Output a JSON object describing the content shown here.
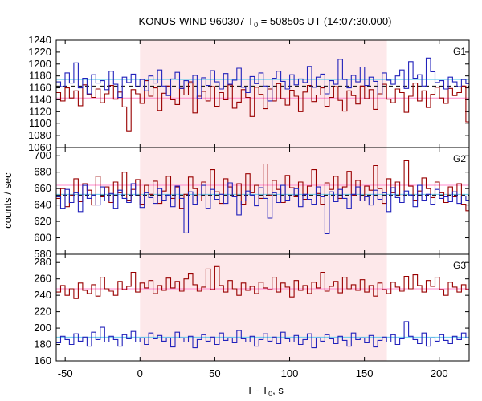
{
  "chart_data": {
    "type": "line",
    "title": {
      "prefix": "KONUS-WIND 960307 T",
      "sub": "0",
      "suffix": " = 50850s UT (14:07:30.000)"
    },
    "xlabel": {
      "prefix": "T - T",
      "sub": "0",
      "suffix": ", s"
    },
    "ylabel": "counts / sec",
    "xlim": [
      -56,
      220
    ],
    "xticks": [
      -50,
      0,
      50,
      100,
      150,
      200
    ],
    "highlight_interval": [
      0,
      165
    ],
    "colors": {
      "highlight": "#fde8ea",
      "red_series": "#990000",
      "blue_series": "#2222bb",
      "red_background": "#ff88cc",
      "blue_background": "#66ccee",
      "dashed_mean": "#000000"
    },
    "bin_width": 2.944,
    "panels": [
      {
        "label": "G1",
        "ylim": [
          1060,
          1240
        ],
        "yticks": [
          1060,
          1080,
          1100,
          1120,
          1140,
          1160,
          1180,
          1200,
          1220,
          1240
        ],
        "red_background_level": 1143,
        "blue_background_level": 1174,
        "dashed_mean_level": 1163,
        "series": [
          {
            "color_key": "red_series",
            "mean": 1143,
            "amplitude": 42,
            "seed": 11,
            "values": [
              1152,
              1138,
              1160,
              1143,
              1155,
              1130,
              1165,
              1149,
              1144,
              1158,
              1135,
              1150,
              1164,
              1141,
              1153,
              1128,
              1088,
              1157,
              1150,
              1134,
              1172,
              1146,
              1160,
              1122,
              1151,
              1163,
              1140,
              1132,
              1159,
              1148,
              1170,
              1118,
              1146,
              1154,
              1138,
              1162,
              1129,
              1152,
              1140,
              1165,
              1126,
              1136,
              1157,
              1144,
              1112,
              1161,
              1149,
              1125,
              1158,
              1138,
              1167,
              1142,
              1131,
              1156,
              1146,
              1120,
              1153,
              1164,
              1137,
              1148,
              1160,
              1129,
              1144,
              1162,
              1139,
              1121,
              1155,
              1147,
              1133,
              1163,
              1142,
              1157,
              1124,
              1150,
              1166,
              1141,
              1135,
              1158,
              1152,
              1119,
              1146,
              1168,
              1138,
              1155,
              1127,
              1149,
              1161,
              1143,
              1134,
              1159,
              1147,
              1152,
              1163,
              1103
            ]
          },
          {
            "color_key": "blue_series",
            "mean": 1170,
            "amplitude": 38,
            "seed": 23,
            "values": [
              1170,
              1162,
              1185,
              1168,
              1202,
              1160,
              1176,
              1150,
              1182,
              1168,
              1172,
              1157,
              1188,
              1166,
              1144,
              1178,
              1169,
              1183,
              1162,
              1174,
              1155,
              1180,
              1168,
              1190,
              1163,
              1147,
              1175,
              1186,
              1159,
              1172,
              1168,
              1181,
              1142,
              1177,
              1164,
              1189,
              1170,
              1158,
              1184,
              1166,
              1173,
              1193,
              1161,
              1152,
              1179,
              1167,
              1185,
              1163,
              1138,
              1176,
              1188,
              1171,
              1158,
              1182,
              1165,
              1175,
              1169,
              1196,
              1161,
              1178,
              1183,
              1150,
              1172,
              1166,
              1208,
              1174,
              1160,
              1181,
              1170,
              1195,
              1164,
              1178,
              1171,
              1148,
              1185,
              1173,
              1166,
              1180,
              1190,
              1159,
              1204,
              1176,
              1182,
              1163,
              1210,
              1187,
              1169,
              1172,
              1158,
              1178,
              1170,
              1162,
              1174,
              1167
            ]
          }
        ]
      },
      {
        "label": "G2",
        "ylim": [
          580,
          710
        ],
        "yticks": [
          580,
          600,
          620,
          640,
          660,
          680,
          700
        ],
        "red_background_level": 664,
        "blue_background_level": 653,
        "dashed_mean_level": 652,
        "series": [
          {
            "color_key": "red_series",
            "mean": 655,
            "amplitude": 30,
            "seed": 37,
            "values": [
              648,
              660,
              638,
              652,
              672,
              644,
              666,
              658,
              640,
              675,
              650,
              662,
              643,
              668,
              655,
              680,
              646,
              659,
              671,
              641,
              664,
              653,
              669,
              642,
              657,
              675,
              648,
              662,
              636,
              653,
              674,
              660,
              645,
              668,
              651,
              683,
              656,
              642,
              672,
              662,
              650,
              666,
              641,
              678,
              655,
              664,
              648,
              690,
              652,
              670,
              659,
              643,
              676,
              661,
              650,
              668,
              647,
              663,
              683,
              654,
              641,
              667,
              659,
              675,
              648,
              662,
              681,
              652,
              670,
              645,
              663,
              658,
              688,
              660,
              642,
              672,
              655,
              668,
              651,
              694,
              663,
              646,
              657,
              673,
              660,
              649,
              668,
              655,
              643,
              662,
              650,
              666,
              641,
              633
            ]
          },
          {
            "color_key": "blue_series",
            "mean": 648,
            "amplitude": 28,
            "seed": 41,
            "values": [
              650,
              636,
              659,
              643,
              655,
              632,
              664,
              648,
              652,
              640,
              662,
              645,
              654,
              636,
              658,
              648,
              643,
              666,
              651,
              637,
              655,
              649,
              642,
              660,
              646,
              652,
              638,
              663,
              648,
              606,
              656,
              641,
              651,
              664,
              636,
              659,
              647,
              653,
              642,
              667,
              650,
              628,
              645,
              657,
              652,
              639,
              661,
              648,
              624,
              655,
              643,
              664,
              646,
              651,
              660,
              638,
              653,
              647,
              641,
              662,
              650,
              605,
              656,
              644,
              659,
              648,
              636,
              653,
              662,
              645,
              650,
              640,
              658,
              647,
              655,
              632,
              661,
              649,
              643,
              657,
              652,
              638,
              664,
              646,
              653,
              641,
              659,
              648,
              650,
              644,
              656,
              642,
              651,
              646
            ]
          }
        ]
      },
      {
        "label": "G3",
        "ylim": [
          160,
          290
        ],
        "yticks": [
          160,
          180,
          200,
          220,
          240,
          260,
          280
        ],
        "red_background_level": 248,
        "blue_background_level": 189,
        "dashed_mean_level": null,
        "series": [
          {
            "color_key": "red_series",
            "mean": 250,
            "amplitude": 22,
            "seed": 53,
            "values": [
              244,
              252,
              240,
              248,
              236,
              255,
              246,
              242,
              253,
              239,
              262,
              248,
              245,
              240,
              257,
              247,
              251,
              268,
              244,
              255,
              249,
              258,
              242,
              252,
              246,
              261,
              249,
              257,
              245,
              260,
              266,
              253,
              245,
              250,
              272,
              247,
              275,
              252,
              244,
              258,
              248,
              240,
              255,
              246,
              251,
              242,
              256,
              249,
              247,
              262,
              244,
              255,
              250,
              238,
              258,
              246,
              252,
              242,
              256,
              249,
              268,
              245,
              251,
              257,
              243,
              262,
              248,
              253,
              246,
              259,
              244,
              252,
              239,
              255,
              247,
              242,
              256,
              250,
              245,
              263,
              248,
              265,
              252,
              244,
              258,
              251,
              262,
              247,
              240,
              256,
              250,
              244,
              253,
              247
            ]
          },
          {
            "color_key": "blue_series",
            "mean": 187,
            "amplitude": 16,
            "seed": 67,
            "values": [
              182,
              190,
              186,
              180,
              193,
              184,
              189,
              178,
              195,
              186,
              201,
              183,
              190,
              186,
              178,
              192,
              187,
              196,
              183,
              188,
              180,
              194,
              187,
              191,
              184,
              188,
              177,
              195,
              188,
              183,
              190,
              176,
              186,
              192,
              184,
              189,
              180,
              194,
              185,
              188,
              182,
              197,
              187,
              183,
              190,
              178,
              186,
              193,
              184,
              189,
              181,
              195,
              187,
              183,
              191,
              180,
              186,
              193,
              176,
              188,
              184,
              192,
              187,
              181,
              190,
              185,
              178,
              194,
              186,
              188,
              182,
              191,
              177,
              185,
              189,
              183,
              192,
              180,
              187,
              208,
              190,
              186,
              181,
              194,
              178,
              188,
              184,
              192,
              185,
              181,
              190,
              186,
              194,
              188
            ]
          }
        ]
      }
    ]
  }
}
